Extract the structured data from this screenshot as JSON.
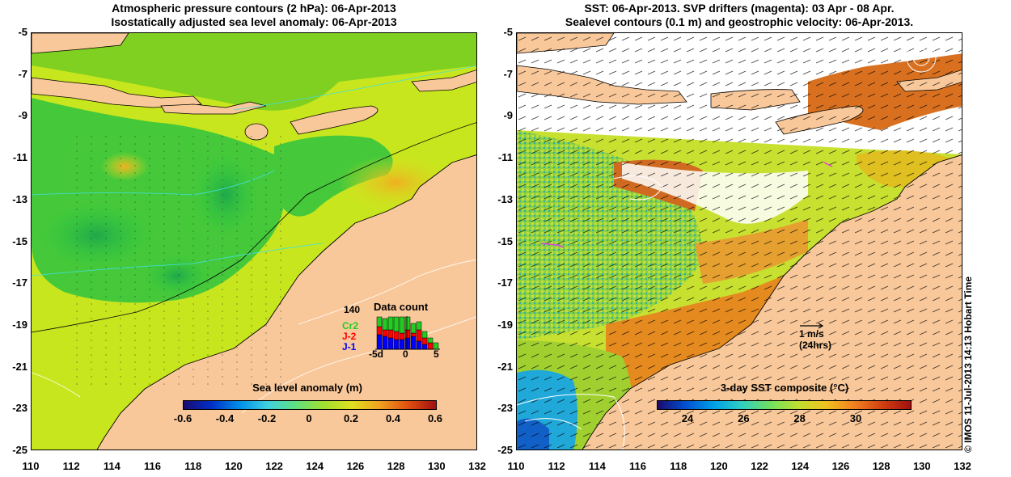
{
  "left_map": {
    "title_line1": "Atmospheric pressure contours (2 hPa): 06-Apr-2013",
    "title_line2": "Isostatically adjusted sea level anomaly: 06-Apr-2013",
    "colorbar": {
      "title": "Sea level anomaly (m)",
      "ticks": [
        "-0.6",
        "-0.4",
        "-0.2",
        "0",
        "0.2",
        "0.4",
        "0.6"
      ]
    },
    "inset": {
      "title": "Data count",
      "max_label": "140",
      "x_ticks": [
        "-5d",
        "0",
        "5"
      ],
      "legend": [
        {
          "label": "Cr2",
          "color": "#22cc22"
        },
        {
          "label": "J-2",
          "color": "#ff0000"
        },
        {
          "label": "J-1",
          "color": "#0000ff"
        }
      ]
    }
  },
  "right_map": {
    "title_line1": "SST: 06-Apr-2013. SVP drifters (magenta): 03 Apr - 08 Apr.",
    "title_line2": "Sealevel contours (0.1 m) and geostrophic velocity: 06-Apr-2013.",
    "colorbar": {
      "title": "3-day SST composite (°C)",
      "ticks": [
        "24",
        "26",
        "28",
        "30"
      ]
    },
    "velocity_scale": {
      "line1": "1 m/s",
      "line2": "(24hrs)"
    }
  },
  "axes": {
    "y_ticks": [
      "-5",
      "-7",
      "-9",
      "-11",
      "-13",
      "-15",
      "-17",
      "-19",
      "-21",
      "-23",
      "-25"
    ],
    "x_ticks": [
      "110",
      "112",
      "114",
      "116",
      "118",
      "120",
      "122",
      "124",
      "126",
      "128",
      "130",
      "132"
    ]
  },
  "credit": "© IMOS 11-Jul-2013 14:13 Hobart Time",
  "colors": {
    "land": "#f9c89a",
    "sea_green": "#2ecc40",
    "sea_yellow": "#c8e61e",
    "sst_orange": "#e58a1f",
    "drifter": "#e040e0"
  }
}
